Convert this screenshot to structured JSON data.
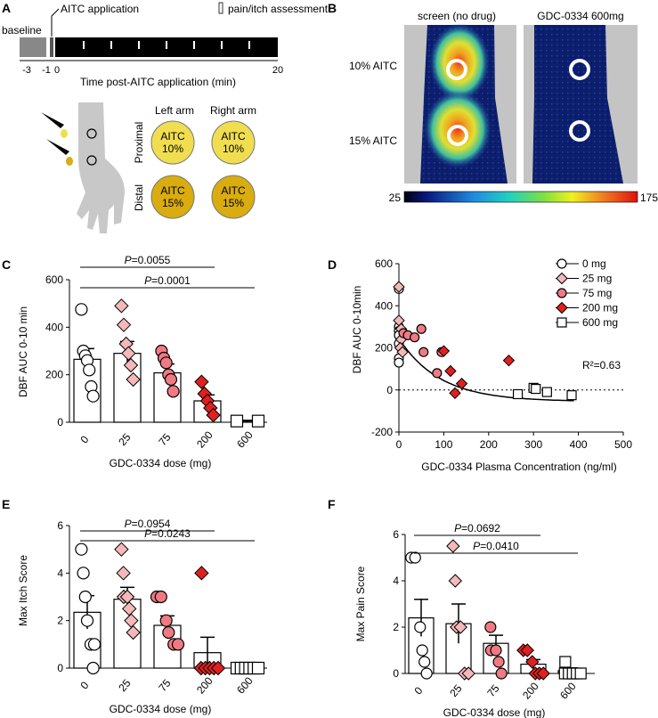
{
  "panel_labels": {
    "a": "A",
    "b": "B",
    "c": "C",
    "d": "D",
    "e": "E",
    "f": "F"
  },
  "panel_a": {
    "baseline_label": "baseline",
    "aitc_label": "AITC application",
    "assessment_label": "pain/itch assessment",
    "ticks": [
      "-3",
      "-1",
      "0",
      "20"
    ],
    "axis_label": "Time post-AITC application (min)",
    "col_left": "Left arm",
    "col_right": "Right arm",
    "row_proximal": "Proximal",
    "row_distal": "Distal",
    "circle_top_line1": "AITC",
    "circle_top_line2": "10%",
    "circle_bottom_line1": "AITC",
    "circle_bottom_line2": "15%",
    "colors": {
      "proximal": "#f0de50",
      "distal": "#d9ac10",
      "arm": "#c8c8c8",
      "bar": "#000000"
    }
  },
  "panel_b": {
    "title_left": "screen (no drug)",
    "title_right": "GDC-0334 600mg",
    "row_top": "10% AITC",
    "row_bottom": "15% AITC",
    "scale_min": "25",
    "scale_max": "175"
  },
  "chart_data": [
    {
      "id": "C",
      "type": "bar",
      "ylabel": "DBF AUC 0-10 min",
      "xlabel": "GDC-0334 dose (mg)",
      "categories": [
        "0",
        "25",
        "75",
        "200",
        "600"
      ],
      "means": [
        265,
        290,
        208,
        90,
        5
      ],
      "sems": [
        45,
        50,
        37,
        25,
        3
      ],
      "points": [
        [
          475,
          300,
          280,
          260,
          220,
          150,
          110
        ],
        [
          490,
          410,
          330,
          290,
          240,
          180
        ],
        [
          300,
          270,
          250,
          200,
          180,
          130
        ],
        [
          170,
          120,
          90,
          60,
          30
        ],
        [
          5,
          5
        ]
      ],
      "ylim": [
        0,
        600
      ],
      "yticks": [
        "0",
        "200",
        "400",
        "600"
      ],
      "brackets": [
        {
          "label": "=0.0055",
          "from": 0,
          "to": 3
        },
        {
          "label": "=0.0001",
          "from": 0,
          "to": 4
        }
      ],
      "p_symbol": "P"
    },
    {
      "id": "D",
      "type": "scatter",
      "xlabel": "GDC-0334 Plasma Concentration (ng/ml)",
      "ylabel": "DBF AUC 0-10min",
      "xlim": [
        0,
        500
      ],
      "ylim": [
        -200,
        600
      ],
      "xticks": [
        "0",
        "100",
        "200",
        "300",
        "400",
        "500"
      ],
      "yticks": [
        "-200",
        "0",
        "200",
        "400",
        "600"
      ],
      "r2": "R²=0.63",
      "series": [
        {
          "name": "0 mg",
          "marker": "circle",
          "color": "#ffffff",
          "points": [
            [
              0,
              480
            ],
            [
              0,
              300
            ],
            [
              0,
              280
            ],
            [
              0,
              260
            ],
            [
              0,
              220
            ],
            [
              0,
              150
            ],
            [
              0,
              130
            ]
          ]
        },
        {
          "name": "25 mg",
          "marker": "diamond",
          "color": "#f4b8b8",
          "points": [
            [
              0,
              490
            ],
            [
              0,
              330
            ],
            [
              5,
              290
            ],
            [
              5,
              240
            ],
            [
              3,
              200
            ],
            [
              8,
              180
            ]
          ]
        },
        {
          "name": "75 mg",
          "marker": "circle",
          "color": "#f07a82",
          "points": [
            [
              10,
              270
            ],
            [
              20,
              260
            ],
            [
              35,
              250
            ],
            [
              50,
              290
            ],
            [
              55,
              180
            ],
            [
              85,
              80
            ],
            [
              95,
              180
            ]
          ]
        },
        {
          "name": "200 mg",
          "marker": "diamond",
          "color": "#e02020",
          "points": [
            [
              100,
              185
            ],
            [
              115,
              90
            ],
            [
              125,
              -15
            ],
            [
              140,
              30
            ],
            [
              245,
              140
            ]
          ]
        },
        {
          "name": "600 mg",
          "marker": "square",
          "color": "#ffffff",
          "points": [
            [
              265,
              -20
            ],
            [
              300,
              10
            ],
            [
              305,
              5
            ],
            [
              330,
              -10
            ],
            [
              385,
              -25
            ]
          ]
        }
      ],
      "fit": {
        "a": 300,
        "k": 0.011,
        "c": -55,
        "x0": 0,
        "x1": 390
      }
    },
    {
      "id": "E",
      "type": "bar",
      "ylabel": "Max Itch Score",
      "xlabel": "GDC-0334 dose (mg)",
      "categories": [
        "0",
        "25",
        "75",
        "200",
        "600"
      ],
      "means": [
        2.35,
        2.9,
        1.8,
        0.65,
        0.02
      ],
      "sems": [
        0.7,
        0.5,
        0.4,
        0.65,
        0.02
      ],
      "points": [
        [
          5,
          4,
          3,
          2,
          1,
          1,
          0
        ],
        [
          5,
          4,
          3,
          3,
          2.5,
          2,
          1.5
        ],
        [
          3,
          3,
          2,
          1.5,
          1,
          1
        ],
        [
          4,
          0,
          0,
          0,
          0,
          0
        ],
        [
          0,
          0,
          0,
          0,
          0,
          0
        ]
      ],
      "ylim": [
        0,
        6
      ],
      "yticks": [
        "0",
        "2",
        "4",
        "6"
      ],
      "brackets": [
        {
          "label": "=0.0954",
          "from": 0,
          "to": 3
        },
        {
          "label": "=0.0243",
          "from": 0,
          "to": 4
        }
      ],
      "p_symbol": "P"
    },
    {
      "id": "F",
      "type": "bar",
      "ylabel": "Max Pain  Score",
      "xlabel": "GDC-0334 dose (mg)",
      "categories": [
        "0",
        "25",
        "75",
        "200",
        "600"
      ],
      "means": [
        2.4,
        2.15,
        1.3,
        0.4,
        0.12
      ],
      "sems": [
        0.8,
        0.85,
        0.35,
        0.2,
        0.12
      ],
      "points": [
        [
          5,
          5,
          2,
          1,
          0.5,
          0
        ],
        [
          5.5,
          4,
          2,
          2,
          0,
          0
        ],
        [
          2,
          1,
          1,
          0.5,
          0
        ],
        [
          1,
          1,
          0.5,
          0,
          0,
          0
        ],
        [
          0.5,
          0,
          0,
          0,
          0,
          0
        ]
      ],
      "ylim": [
        0,
        6
      ],
      "yticks": [
        "0",
        "2",
        "4",
        "6"
      ],
      "brackets": [
        {
          "label": "=0.0692",
          "from": 0,
          "to": 3
        },
        {
          "label": "=0.0410",
          "from": 0,
          "to": 4
        }
      ],
      "p_symbol": "P"
    }
  ],
  "marker_styles": {
    "0": {
      "shape": "circle",
      "fill": "#ffffff"
    },
    "1": {
      "shape": "diamond",
      "fill": "#f4b8b8"
    },
    "2": {
      "shape": "circle",
      "fill": "#f07a82"
    },
    "3": {
      "shape": "diamond",
      "fill": "#e02020"
    },
    "4": {
      "shape": "square",
      "fill": "#ffffff"
    }
  }
}
